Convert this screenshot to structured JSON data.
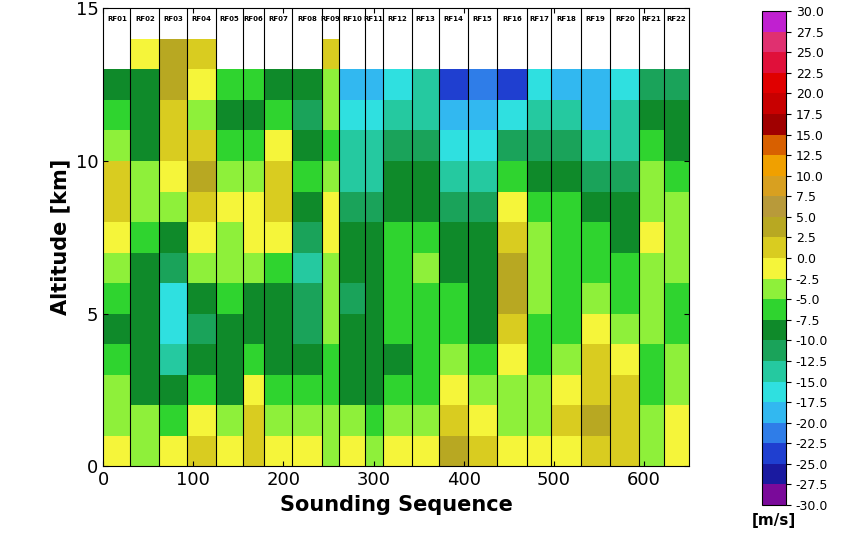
{
  "chart_data": {
    "type": "heatmap",
    "xlabel": "Sounding Sequence",
    "ylabel": "Altitude [km]",
    "xlim": [
      0,
      650
    ],
    "ylim": [
      0,
      15
    ],
    "xticks": [
      0,
      100,
      200,
      300,
      400,
      500,
      600
    ],
    "yticks": [
      0,
      5,
      10,
      15
    ],
    "x_edges": [
      0,
      30,
      62,
      93,
      125,
      155,
      178,
      210,
      243,
      262,
      290,
      310,
      343,
      373,
      405,
      437,
      470,
      497,
      530,
      563,
      595,
      622,
      650
    ],
    "y_edges": [
      0,
      1,
      2,
      3,
      4,
      5,
      6,
      7,
      8,
      9,
      10,
      11,
      12,
      13,
      14
    ],
    "segment_labels": [
      "RF01",
      "RF02",
      "RF03",
      "RF04",
      "RF05",
      "RF06",
      "RF07",
      "RF08",
      "RF09",
      "RF10",
      "RF11",
      "RF12",
      "RF13",
      "RF14",
      "RF15",
      "RF16",
      "RF17",
      "RF18",
      "RF19",
      "RF20",
      "RF21",
      "RF22"
    ],
    "cells": [
      [
        -2,
        -3,
        -5,
        -7,
        -8,
        -7,
        -4,
        -1,
        1,
        2,
        -3,
        -7,
        -8,
        null
      ],
      [
        -3,
        -5,
        -8,
        -9,
        -10,
        -10,
        -8,
        -6,
        -4,
        -5,
        -8,
        -10,
        -8,
        -2
      ],
      [
        -2,
        -6,
        -10,
        -13,
        -16,
        -17,
        -12,
        -8,
        -4,
        -2,
        0,
        2,
        3,
        4
      ],
      [
        1,
        -2,
        -6,
        -10,
        -12,
        -8,
        -4,
        -1,
        2,
        3,
        0,
        -3,
        -1,
        2
      ],
      [
        -2,
        -4,
        -8,
        -10,
        -9,
        -7,
        -5,
        -3,
        -2,
        -4,
        -7,
        -8,
        -6,
        null
      ],
      [
        1,
        2,
        -2,
        -6,
        -8,
        -8,
        -5,
        -2,
        -1,
        -3,
        -6,
        -8,
        -7,
        null
      ],
      [
        -1,
        -3,
        -6,
        -9,
        -10,
        -9,
        -6,
        -2,
        1,
        2,
        -2,
        -7,
        -9,
        null
      ],
      [
        -1,
        -4,
        -7,
        -9,
        -11,
        -12,
        -13,
        -11,
        -8,
        -7,
        -9,
        -11,
        -10,
        null
      ],
      [
        -3,
        -5,
        -6,
        -6,
        -5,
        -4,
        -3,
        -2,
        -2,
        -4,
        -6,
        -5,
        -3,
        1
      ],
      [
        -2,
        -5,
        -8,
        -9,
        -10,
        -11,
        -10,
        -9,
        -11,
        -13,
        -15,
        -17,
        -19,
        null
      ],
      [
        -4,
        -7,
        -9,
        -10,
        -9,
        -8,
        -8,
        -9,
        -11,
        -13,
        -14,
        -16,
        -18,
        null
      ],
      [
        -1,
        -3,
        -6,
        -8,
        -7,
        -6,
        -6,
        -7,
        -9,
        -10,
        -12,
        -14,
        -16,
        null
      ],
      [
        -1,
        -3,
        -6,
        -7,
        -7,
        -6,
        -5,
        -6,
        -8,
        -10,
        -12,
        -14,
        -15,
        null
      ],
      [
        3,
        2,
        -2,
        -5,
        -6,
        -7,
        -8,
        -9,
        -11,
        -14,
        -17,
        -20,
        -24,
        null
      ],
      [
        2,
        -1,
        -4,
        -7,
        -8,
        -9,
        -9,
        -10,
        -12,
        -14,
        -17,
        -20,
        -22,
        null
      ],
      [
        -2,
        -3,
        -3,
        -2,
        0,
        3,
        4,
        2,
        -2,
        -6,
        -12,
        -17,
        -23,
        null
      ],
      [
        -1,
        -3,
        -5,
        -6,
        -6,
        -5,
        -4,
        -5,
        -7,
        -9,
        -11,
        -14,
        -16,
        null
      ],
      [
        -1,
        0,
        -2,
        -4,
        -6,
        -7,
        -7,
        -6,
        -7,
        -9,
        -12,
        -15,
        -18,
        null
      ],
      [
        1,
        3,
        2,
        0,
        -2,
        -4,
        -6,
        -7,
        -9,
        -12,
        -15,
        -18,
        -20,
        null
      ],
      [
        2,
        2,
        1,
        -1,
        -4,
        -6,
        -7,
        -8,
        -9,
        -11,
        -13,
        -15,
        -16,
        null
      ],
      [
        -3,
        -5,
        -7,
        -6,
        -5,
        -4,
        -3,
        -2,
        -3,
        -5,
        -7,
        -9,
        -11,
        null
      ],
      [
        -1,
        -2,
        -4,
        -5,
        -6,
        -6,
        -5,
        -4,
        -5,
        -7,
        -8,
        -10,
        -11,
        null
      ]
    ],
    "colorbar": {
      "label": "[m/s]",
      "range": [
        -30,
        30
      ],
      "ticks": [
        {
          "value": 30,
          "label": "30.0"
        },
        {
          "value": 27.5,
          "label": "27.5"
        },
        {
          "value": 25,
          "label": "25.0"
        },
        {
          "value": 22.5,
          "label": "22.5"
        },
        {
          "value": 20,
          "label": "20.0"
        },
        {
          "value": 17.5,
          "label": "17.5"
        },
        {
          "value": 15,
          "label": "15.0"
        },
        {
          "value": 12.5,
          "label": "12.5"
        },
        {
          "value": 10,
          "label": "10.0"
        },
        {
          "value": 7.5,
          "label": "7.5"
        },
        {
          "value": 5,
          "label": "5.0"
        },
        {
          "value": 2.5,
          "label": "2.5"
        },
        {
          "value": 0,
          "label": "0.0"
        },
        {
          "value": -2.5,
          "label": "-2.5"
        },
        {
          "value": -5,
          "label": "-5.0"
        },
        {
          "value": -7.5,
          "label": "-7.5"
        },
        {
          "value": -10,
          "label": "-10.0"
        },
        {
          "value": -12.5,
          "label": "-12.5"
        },
        {
          "value": -15,
          "label": "-15.0"
        },
        {
          "value": -17.5,
          "label": "-17.5"
        },
        {
          "value": -20,
          "label": "-20.0"
        },
        {
          "value": -22.5,
          "label": "-22.5"
        },
        {
          "value": -25,
          "label": "-25.0"
        },
        {
          "value": -27.5,
          "label": "-27.5"
        },
        {
          "value": -30,
          "label": "-30.0"
        }
      ]
    }
  }
}
